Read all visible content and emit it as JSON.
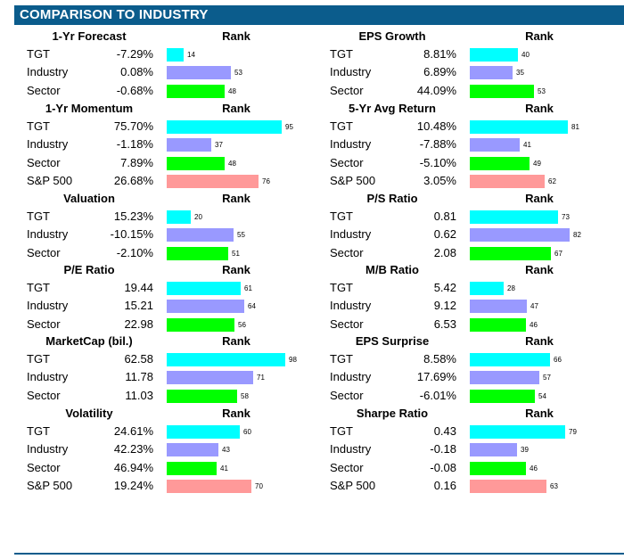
{
  "header": {
    "title": "COMPARISON TO INDUSTRY"
  },
  "rank_header": "Rank",
  "colors": {
    "header_bg": "#0b5c8c",
    "TGT": "#00ffff",
    "Industry": "#9999ff",
    "Sector": "#00ff00",
    "S&P 500": "#ff9999"
  },
  "chart_data": {
    "type": "bar",
    "description_units": "rank percentile 0-100",
    "xlim": [
      0,
      100
    ],
    "panels": [
      {
        "title": "1-Yr Forecast",
        "rows": [
          {
            "label": "TGT",
            "value": "-7.29%",
            "rank": 14
          },
          {
            "label": "Industry",
            "value": "0.08%",
            "rank": 53
          },
          {
            "label": "Sector",
            "value": "-0.68%",
            "rank": 48
          }
        ]
      },
      {
        "title": "EPS Growth",
        "rows": [
          {
            "label": "TGT",
            "value": "8.81%",
            "rank": 40
          },
          {
            "label": "Industry",
            "value": "6.89%",
            "rank": 35
          },
          {
            "label": "Sector",
            "value": "44.09%",
            "rank": 53
          }
        ]
      },
      {
        "title": "1-Yr Momentum",
        "rows": [
          {
            "label": "TGT",
            "value": "75.70%",
            "rank": 95
          },
          {
            "label": "Industry",
            "value": "-1.18%",
            "rank": 37
          },
          {
            "label": "Sector",
            "value": "7.89%",
            "rank": 48
          },
          {
            "label": "S&P 500",
            "value": "26.68%",
            "rank": 76
          }
        ]
      },
      {
        "title": "5-Yr Avg Return",
        "rows": [
          {
            "label": "TGT",
            "value": "10.48%",
            "rank": 81
          },
          {
            "label": "Industry",
            "value": "-7.88%",
            "rank": 41
          },
          {
            "label": "Sector",
            "value": "-5.10%",
            "rank": 49
          },
          {
            "label": "S&P 500",
            "value": "3.05%",
            "rank": 62
          }
        ]
      },
      {
        "title": "Valuation",
        "rows": [
          {
            "label": "TGT",
            "value": "15.23%",
            "rank": 20
          },
          {
            "label": "Industry",
            "value": "-10.15%",
            "rank": 55
          },
          {
            "label": "Sector",
            "value": "-2.10%",
            "rank": 51
          }
        ]
      },
      {
        "title": "P/S Ratio",
        "rows": [
          {
            "label": "TGT",
            "value": "0.81",
            "rank": 73
          },
          {
            "label": "Industry",
            "value": "0.62",
            "rank": 82
          },
          {
            "label": "Sector",
            "value": "2.08",
            "rank": 67
          }
        ]
      },
      {
        "title": "P/E Ratio",
        "rows": [
          {
            "label": "TGT",
            "value": "19.44",
            "rank": 61
          },
          {
            "label": "Industry",
            "value": "15.21",
            "rank": 64
          },
          {
            "label": "Sector",
            "value": "22.98",
            "rank": 56
          }
        ]
      },
      {
        "title": "M/B Ratio",
        "rows": [
          {
            "label": "TGT",
            "value": "5.42",
            "rank": 28
          },
          {
            "label": "Industry",
            "value": "9.12",
            "rank": 47
          },
          {
            "label": "Sector",
            "value": "6.53",
            "rank": 46
          }
        ]
      },
      {
        "title": "MarketCap (bil.)",
        "rows": [
          {
            "label": "TGT",
            "value": "62.58",
            "rank": 98
          },
          {
            "label": "Industry",
            "value": "11.78",
            "rank": 71
          },
          {
            "label": "Sector",
            "value": "11.03",
            "rank": 58
          }
        ]
      },
      {
        "title": "EPS Surprise",
        "rows": [
          {
            "label": "TGT",
            "value": "8.58%",
            "rank": 66
          },
          {
            "label": "Industry",
            "value": "17.69%",
            "rank": 57
          },
          {
            "label": "Sector",
            "value": "-6.01%",
            "rank": 54
          }
        ]
      },
      {
        "title": "Volatility",
        "rows": [
          {
            "label": "TGT",
            "value": "24.61%",
            "rank": 60
          },
          {
            "label": "Industry",
            "value": "42.23%",
            "rank": 43
          },
          {
            "label": "Sector",
            "value": "46.94%",
            "rank": 41
          },
          {
            "label": "S&P 500",
            "value": "19.24%",
            "rank": 70
          }
        ]
      },
      {
        "title": "Sharpe Ratio",
        "rows": [
          {
            "label": "TGT",
            "value": "0.43",
            "rank": 79
          },
          {
            "label": "Industry",
            "value": "-0.18",
            "rank": 39
          },
          {
            "label": "Sector",
            "value": "-0.08",
            "rank": 46
          },
          {
            "label": "S&P 500",
            "value": "0.16",
            "rank": 63
          }
        ]
      }
    ]
  }
}
